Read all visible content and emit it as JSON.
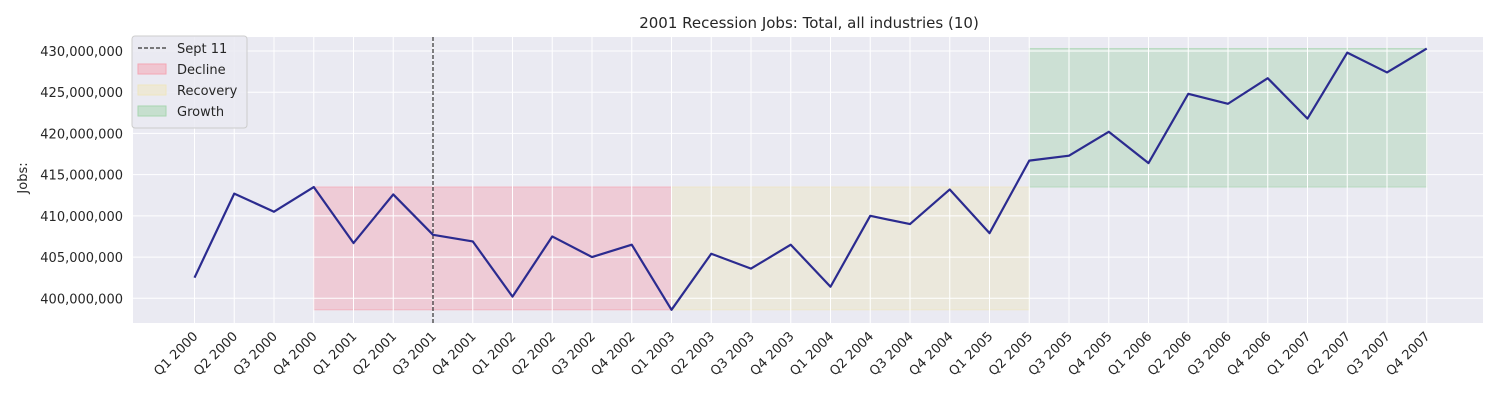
{
  "chart_data": {
    "type": "line",
    "title": "2001 Recession Jobs: Total, all industries (10)",
    "xlabel": "",
    "ylabel": "Jobs:",
    "categories": [
      "Q1 2000",
      "Q2 2000",
      "Q3 2000",
      "Q4 2000",
      "Q1 2001",
      "Q2 2001",
      "Q3 2001",
      "Q4 2001",
      "Q1 2002",
      "Q2 2002",
      "Q3 2002",
      "Q4 2002",
      "Q1 2003",
      "Q2 2003",
      "Q3 2003",
      "Q4 2003",
      "Q1 2004",
      "Q2 2004",
      "Q3 2004",
      "Q4 2004",
      "Q1 2005",
      "Q2 2005",
      "Q3 2005",
      "Q4 2005",
      "Q1 2006",
      "Q2 2006",
      "Q3 2006",
      "Q4 2006",
      "Q1 2007",
      "Q2 2007",
      "Q3 2007",
      "Q4 2007"
    ],
    "series": [
      {
        "name": "",
        "color": "#2b2b8f",
        "values": [
          402500000,
          412700000,
          410500000,
          413500000,
          406700000,
          412600000,
          407700000,
          406900000,
          400200000,
          407500000,
          405000000,
          406500000,
          398600000,
          405400000,
          403600000,
          406500000,
          401400000,
          410000000,
          409000000,
          413200000,
          407900000,
          416700000,
          417300000,
          420200000,
          416400000,
          424800000,
          423600000,
          426700000,
          421800000,
          429800000,
          427400000,
          430300000
        ]
      }
    ],
    "ylim": [
      397000000,
      431700000
    ],
    "yticks": [
      400000000,
      405000000,
      410000000,
      415000000,
      420000000,
      425000000,
      430000000
    ],
    "ytick_labels": [
      "400,000,000",
      "405,000,000",
      "410,000,000",
      "415,000,000",
      "420,000,000",
      "425,000,000",
      "430,000,000"
    ],
    "grid": true,
    "legend_position": "top-left",
    "vline": {
      "label": "Sept 11",
      "category": "Q3 2001",
      "color": "#333333"
    },
    "regions": [
      {
        "label": "Decline",
        "start": "Q4 2000",
        "end": "Q1 2003",
        "y_range": [
          398600000,
          413500000
        ],
        "color": "#f4a6b4"
      },
      {
        "label": "Recovery",
        "start": "Q1 2003",
        "end": "Q2 2005",
        "y_range": [
          398600000,
          413500000
        ],
        "color": "#eee6c0"
      },
      {
        "label": "Growth",
        "start": "Q2 2005",
        "end": "Q4 2007",
        "y_range": [
          413500000,
          430300000
        ],
        "color": "#a8d5b0"
      }
    ],
    "background_color": "#eaeaf2"
  }
}
